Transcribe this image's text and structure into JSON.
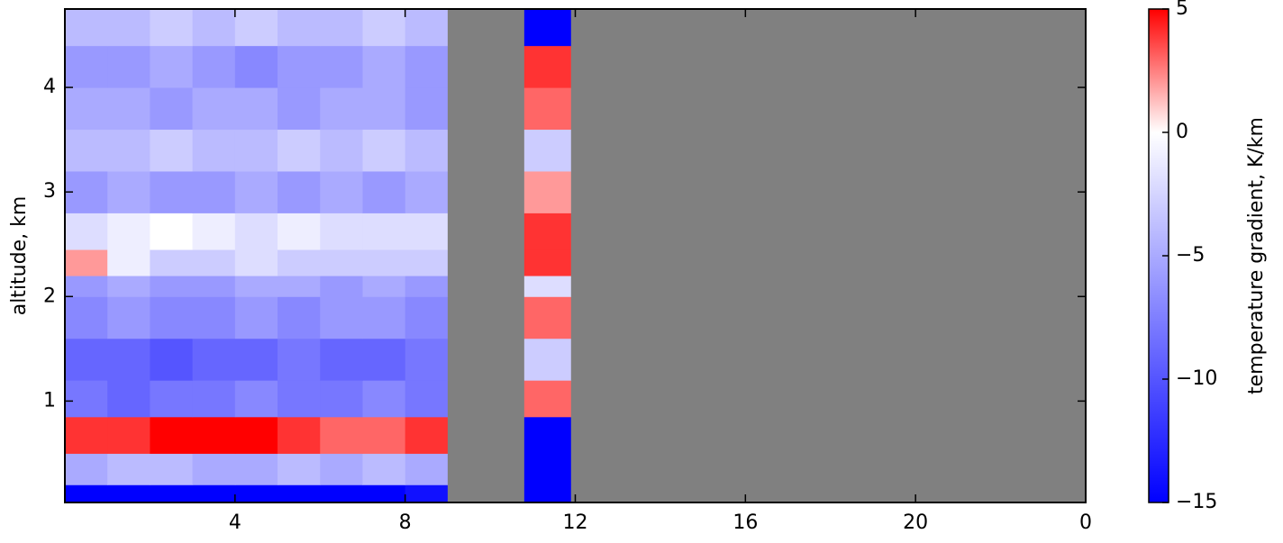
{
  "chart_data": {
    "type": "heatmap",
    "ylabel": "altitude, km",
    "colorbar_label": "temperature gradient, K/km",
    "x": [
      0,
      1,
      2,
      3,
      4,
      5,
      6,
      7,
      8,
      9,
      10.8,
      11.9,
      24
    ],
    "y": [
      0.03,
      0.2,
      0.5,
      0.85,
      1.2,
      1.6,
      2.0,
      2.2,
      2.45,
      2.8,
      3.2,
      3.6,
      4.0,
      4.4,
      4.75
    ],
    "z": [
      [
        -15,
        -15,
        -15,
        -15,
        -15,
        -15,
        -15,
        -15,
        -14,
        null,
        -15,
        null
      ],
      [
        -5,
        -4,
        -4,
        -5,
        -5,
        -4,
        -5,
        -4,
        -5,
        null,
        -15,
        null
      ],
      [
        4,
        4,
        5,
        5,
        5,
        4,
        3,
        3,
        4,
        null,
        -15,
        null
      ],
      [
        -8,
        -9,
        -8,
        -8,
        -7,
        -8,
        -8,
        -7,
        -8,
        null,
        3,
        null
      ],
      [
        -9,
        -9,
        -10,
        -9,
        -9,
        -8,
        -9,
        -9,
        -8,
        null,
        -3,
        null
      ],
      [
        -7,
        -6,
        -7,
        -7,
        -6,
        -7,
        -6,
        -6,
        -7,
        null,
        3,
        null
      ],
      [
        -6,
        -5,
        -6,
        -6,
        -5,
        -5,
        -6,
        -5,
        -6,
        null,
        -2,
        null
      ],
      [
        2,
        -1,
        -3,
        -3,
        -2,
        -3,
        -3,
        -3,
        -3,
        null,
        4,
        null
      ],
      [
        -2,
        -1,
        0,
        -1,
        -2,
        -1,
        -2,
        -2,
        -2,
        null,
        4,
        null
      ],
      [
        -6,
        -5,
        -6,
        -6,
        -5,
        -6,
        -5,
        -6,
        -5,
        null,
        2,
        null
      ],
      [
        -4,
        -4,
        -3,
        -4,
        -4,
        -3,
        -4,
        -3,
        -4,
        null,
        -3,
        null
      ],
      [
        -5,
        -5,
        -6,
        -5,
        -5,
        -6,
        -5,
        -5,
        -6,
        null,
        3,
        null
      ],
      [
        -6,
        -6,
        -5,
        -6,
        -7,
        -6,
        -6,
        -5,
        -6,
        null,
        4,
        null
      ],
      [
        -4,
        -4,
        -3,
        -4,
        -3,
        -4,
        -4,
        -3,
        -4,
        null,
        -15,
        null
      ]
    ],
    "xlim": [
      0,
      24
    ],
    "xticks": [
      4,
      8,
      12,
      16,
      20,
      {
        "value": 24,
        "label": "0"
      }
    ],
    "ylim": [
      0.03,
      4.75
    ],
    "yticks": [
      1,
      2,
      3,
      4
    ],
    "clim": [
      -15,
      5
    ],
    "cticks": [
      {
        "value": -15,
        "label": "−15"
      },
      {
        "value": -10,
        "label": "−10"
      },
      {
        "value": -5,
        "label": "−5"
      },
      0,
      5
    ],
    "cmap": [
      {
        "value": -15,
        "color": "#0000ff"
      },
      {
        "value": 0,
        "color": "#ffffff"
      },
      {
        "value": 5,
        "color": "#ff0000"
      }
    ],
    "mask_color": "#808080"
  }
}
